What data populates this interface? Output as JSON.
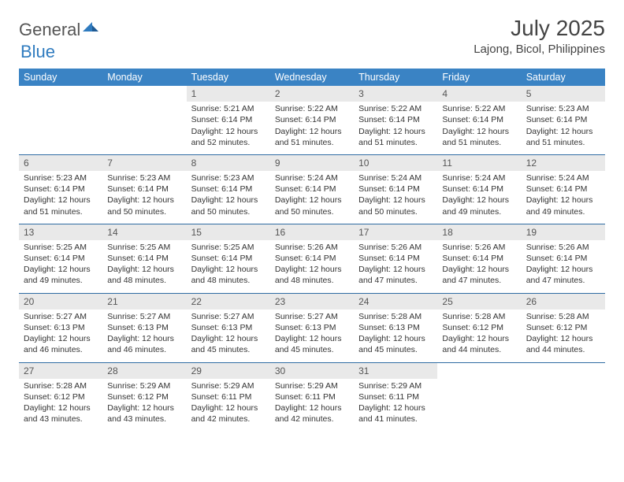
{
  "brand": {
    "part1": "General",
    "part2": "Blue"
  },
  "title": "July 2025",
  "location": "Lajong, Bicol, Philippines",
  "colors": {
    "header_bg": "#3a83c4",
    "header_text": "#ffffff",
    "daynum_bg": "#e9e9e9",
    "row_border": "#2f6ca3",
    "brand_blue": "#2f7bbf",
    "text": "#333333"
  },
  "dayNames": [
    "Sunday",
    "Monday",
    "Tuesday",
    "Wednesday",
    "Thursday",
    "Friday",
    "Saturday"
  ],
  "weeks": [
    [
      {
        "n": "",
        "l1": "",
        "l2": "",
        "l3": "",
        "l4": ""
      },
      {
        "n": "",
        "l1": "",
        "l2": "",
        "l3": "",
        "l4": ""
      },
      {
        "n": "1",
        "l1": "Sunrise: 5:21 AM",
        "l2": "Sunset: 6:14 PM",
        "l3": "Daylight: 12 hours",
        "l4": "and 52 minutes."
      },
      {
        "n": "2",
        "l1": "Sunrise: 5:22 AM",
        "l2": "Sunset: 6:14 PM",
        "l3": "Daylight: 12 hours",
        "l4": "and 51 minutes."
      },
      {
        "n": "3",
        "l1": "Sunrise: 5:22 AM",
        "l2": "Sunset: 6:14 PM",
        "l3": "Daylight: 12 hours",
        "l4": "and 51 minutes."
      },
      {
        "n": "4",
        "l1": "Sunrise: 5:22 AM",
        "l2": "Sunset: 6:14 PM",
        "l3": "Daylight: 12 hours",
        "l4": "and 51 minutes."
      },
      {
        "n": "5",
        "l1": "Sunrise: 5:23 AM",
        "l2": "Sunset: 6:14 PM",
        "l3": "Daylight: 12 hours",
        "l4": "and 51 minutes."
      }
    ],
    [
      {
        "n": "6",
        "l1": "Sunrise: 5:23 AM",
        "l2": "Sunset: 6:14 PM",
        "l3": "Daylight: 12 hours",
        "l4": "and 51 minutes."
      },
      {
        "n": "7",
        "l1": "Sunrise: 5:23 AM",
        "l2": "Sunset: 6:14 PM",
        "l3": "Daylight: 12 hours",
        "l4": "and 50 minutes."
      },
      {
        "n": "8",
        "l1": "Sunrise: 5:23 AM",
        "l2": "Sunset: 6:14 PM",
        "l3": "Daylight: 12 hours",
        "l4": "and 50 minutes."
      },
      {
        "n": "9",
        "l1": "Sunrise: 5:24 AM",
        "l2": "Sunset: 6:14 PM",
        "l3": "Daylight: 12 hours",
        "l4": "and 50 minutes."
      },
      {
        "n": "10",
        "l1": "Sunrise: 5:24 AM",
        "l2": "Sunset: 6:14 PM",
        "l3": "Daylight: 12 hours",
        "l4": "and 50 minutes."
      },
      {
        "n": "11",
        "l1": "Sunrise: 5:24 AM",
        "l2": "Sunset: 6:14 PM",
        "l3": "Daylight: 12 hours",
        "l4": "and 49 minutes."
      },
      {
        "n": "12",
        "l1": "Sunrise: 5:24 AM",
        "l2": "Sunset: 6:14 PM",
        "l3": "Daylight: 12 hours",
        "l4": "and 49 minutes."
      }
    ],
    [
      {
        "n": "13",
        "l1": "Sunrise: 5:25 AM",
        "l2": "Sunset: 6:14 PM",
        "l3": "Daylight: 12 hours",
        "l4": "and 49 minutes."
      },
      {
        "n": "14",
        "l1": "Sunrise: 5:25 AM",
        "l2": "Sunset: 6:14 PM",
        "l3": "Daylight: 12 hours",
        "l4": "and 48 minutes."
      },
      {
        "n": "15",
        "l1": "Sunrise: 5:25 AM",
        "l2": "Sunset: 6:14 PM",
        "l3": "Daylight: 12 hours",
        "l4": "and 48 minutes."
      },
      {
        "n": "16",
        "l1": "Sunrise: 5:26 AM",
        "l2": "Sunset: 6:14 PM",
        "l3": "Daylight: 12 hours",
        "l4": "and 48 minutes."
      },
      {
        "n": "17",
        "l1": "Sunrise: 5:26 AM",
        "l2": "Sunset: 6:14 PM",
        "l3": "Daylight: 12 hours",
        "l4": "and 47 minutes."
      },
      {
        "n": "18",
        "l1": "Sunrise: 5:26 AM",
        "l2": "Sunset: 6:14 PM",
        "l3": "Daylight: 12 hours",
        "l4": "and 47 minutes."
      },
      {
        "n": "19",
        "l1": "Sunrise: 5:26 AM",
        "l2": "Sunset: 6:14 PM",
        "l3": "Daylight: 12 hours",
        "l4": "and 47 minutes."
      }
    ],
    [
      {
        "n": "20",
        "l1": "Sunrise: 5:27 AM",
        "l2": "Sunset: 6:13 PM",
        "l3": "Daylight: 12 hours",
        "l4": "and 46 minutes."
      },
      {
        "n": "21",
        "l1": "Sunrise: 5:27 AM",
        "l2": "Sunset: 6:13 PM",
        "l3": "Daylight: 12 hours",
        "l4": "and 46 minutes."
      },
      {
        "n": "22",
        "l1": "Sunrise: 5:27 AM",
        "l2": "Sunset: 6:13 PM",
        "l3": "Daylight: 12 hours",
        "l4": "and 45 minutes."
      },
      {
        "n": "23",
        "l1": "Sunrise: 5:27 AM",
        "l2": "Sunset: 6:13 PM",
        "l3": "Daylight: 12 hours",
        "l4": "and 45 minutes."
      },
      {
        "n": "24",
        "l1": "Sunrise: 5:28 AM",
        "l2": "Sunset: 6:13 PM",
        "l3": "Daylight: 12 hours",
        "l4": "and 45 minutes."
      },
      {
        "n": "25",
        "l1": "Sunrise: 5:28 AM",
        "l2": "Sunset: 6:12 PM",
        "l3": "Daylight: 12 hours",
        "l4": "and 44 minutes."
      },
      {
        "n": "26",
        "l1": "Sunrise: 5:28 AM",
        "l2": "Sunset: 6:12 PM",
        "l3": "Daylight: 12 hours",
        "l4": "and 44 minutes."
      }
    ],
    [
      {
        "n": "27",
        "l1": "Sunrise: 5:28 AM",
        "l2": "Sunset: 6:12 PM",
        "l3": "Daylight: 12 hours",
        "l4": "and 43 minutes."
      },
      {
        "n": "28",
        "l1": "Sunrise: 5:29 AM",
        "l2": "Sunset: 6:12 PM",
        "l3": "Daylight: 12 hours",
        "l4": "and 43 minutes."
      },
      {
        "n": "29",
        "l1": "Sunrise: 5:29 AM",
        "l2": "Sunset: 6:11 PM",
        "l3": "Daylight: 12 hours",
        "l4": "and 42 minutes."
      },
      {
        "n": "30",
        "l1": "Sunrise: 5:29 AM",
        "l2": "Sunset: 6:11 PM",
        "l3": "Daylight: 12 hours",
        "l4": "and 42 minutes."
      },
      {
        "n": "31",
        "l1": "Sunrise: 5:29 AM",
        "l2": "Sunset: 6:11 PM",
        "l3": "Daylight: 12 hours",
        "l4": "and 41 minutes."
      },
      {
        "n": "",
        "l1": "",
        "l2": "",
        "l3": "",
        "l4": ""
      },
      {
        "n": "",
        "l1": "",
        "l2": "",
        "l3": "",
        "l4": ""
      }
    ]
  ]
}
